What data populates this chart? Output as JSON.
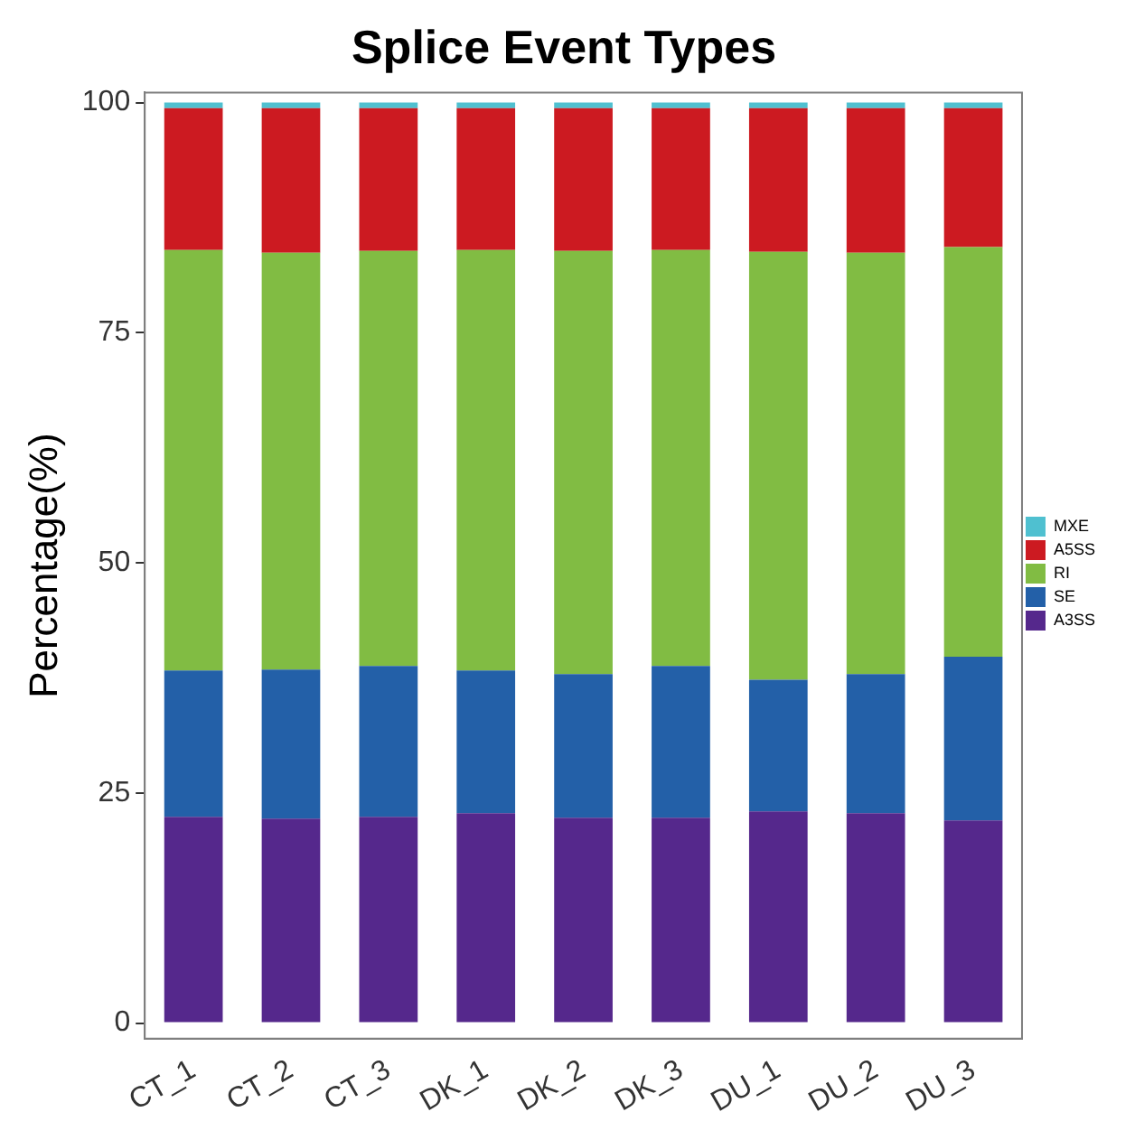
{
  "chart_data": {
    "type": "bar",
    "title": "Splice Event Types",
    "ylabel": "Percentage(%)",
    "categories": [
      "CT_1",
      "CT_2",
      "CT_3",
      "DK_1",
      "DK_2",
      "DK_3",
      "DU_1",
      "DU_2",
      "DU_3"
    ],
    "stacked": true,
    "legend": "right",
    "grid": false,
    "ylim": [
      -1.7,
      101.1
    ],
    "yticks": [
      0,
      25,
      50,
      75,
      100
    ],
    "series": [
      {
        "name": "A3SS",
        "color": "#55288c",
        "values": [
          22.4,
          22.2,
          22.4,
          22.8,
          22.3,
          22.3,
          23.0,
          22.8,
          22.0
        ]
      },
      {
        "name": "SE",
        "color": "#2360a8",
        "values": [
          15.9,
          16.2,
          16.4,
          15.5,
          15.6,
          16.5,
          14.3,
          15.1,
          17.8
        ]
      },
      {
        "name": "RI",
        "color": "#81bc43",
        "values": [
          45.7,
          45.3,
          45.1,
          45.7,
          46.0,
          45.2,
          46.5,
          45.8,
          44.5
        ]
      },
      {
        "name": "A5SS",
        "color": "#cc1a21",
        "values": [
          15.4,
          15.7,
          15.5,
          15.4,
          15.5,
          15.4,
          15.6,
          15.7,
          15.1
        ]
      },
      {
        "name": "MXE",
        "color": "#4fc0d0",
        "values": [
          0.6,
          0.6,
          0.6,
          0.6,
          0.6,
          0.6,
          0.6,
          0.6,
          0.6
        ]
      }
    ]
  }
}
